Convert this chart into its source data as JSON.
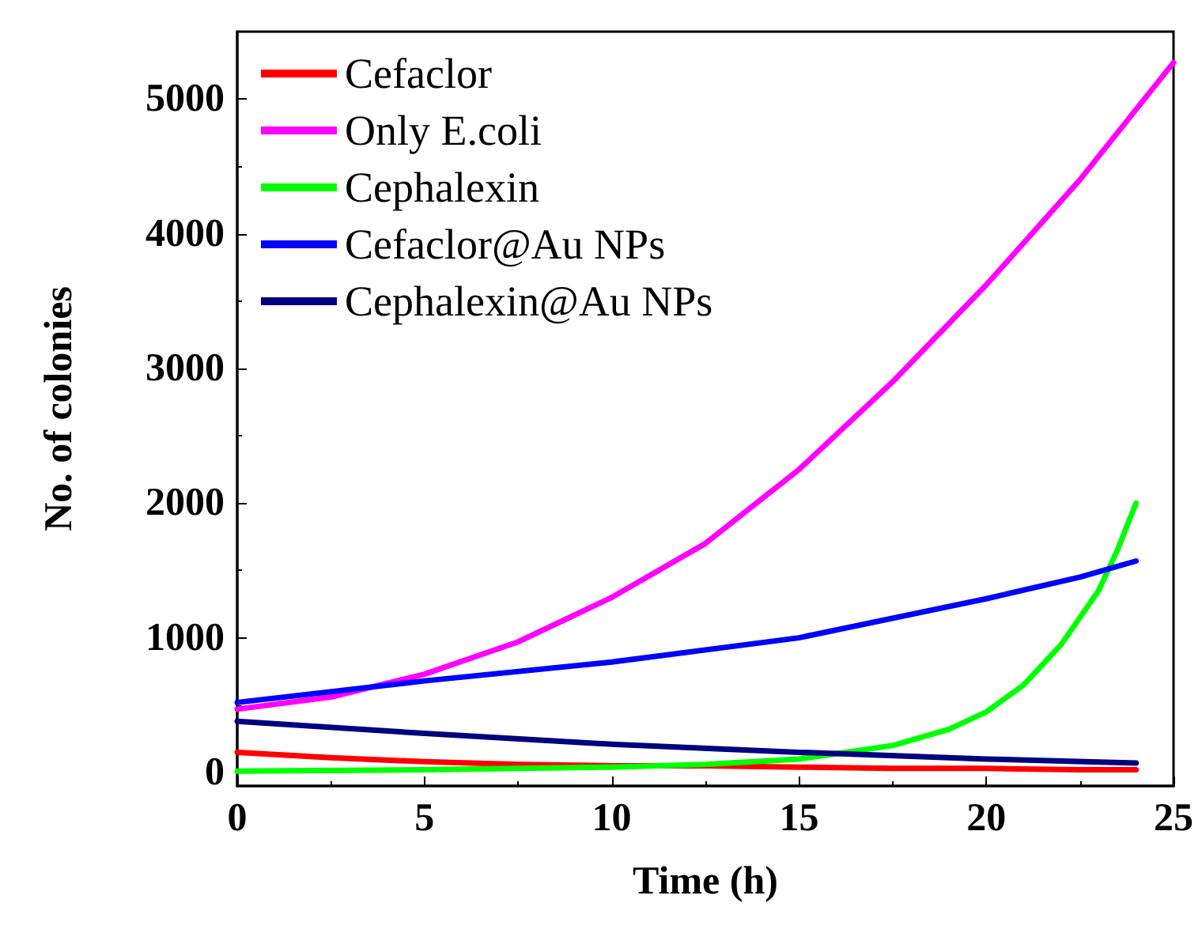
{
  "chart_data": {
    "type": "line",
    "xlabel": "Time (h)",
    "ylabel": "No. of colonies",
    "xlim": [
      0,
      25
    ],
    "xticks": [
      0,
      5,
      10,
      15,
      20,
      25
    ],
    "ylim": [
      -100,
      5500
    ],
    "yticks": [
      0,
      1000,
      2000,
      3000,
      4000,
      5000
    ],
    "grid": false,
    "legend": "top left",
    "marker": "none",
    "line_style": "solid",
    "series": [
      {
        "name": "Cefaclor",
        "color": "#ff0000",
        "x": [
          0,
          2.5,
          5,
          7.5,
          10,
          12.5,
          15,
          17.5,
          20,
          22.5,
          24
        ],
        "values": [
          150,
          110,
          80,
          60,
          50,
          50,
          40,
          30,
          30,
          20,
          20
        ]
      },
      {
        "name": "Only E.coli",
        "color": "#ff00ff",
        "x": [
          0,
          2.5,
          5,
          7.5,
          10,
          12.5,
          15,
          17.5,
          20,
          22.5,
          25
        ],
        "values": [
          470,
          560,
          730,
          970,
          1300,
          1700,
          2250,
          2900,
          3620,
          4400,
          5270
        ]
      },
      {
        "name": "Cephalexin",
        "color": "#00ff00",
        "x": [
          0,
          5,
          10,
          12.5,
          15,
          17.5,
          19,
          20,
          21,
          22,
          23,
          23.5,
          24
        ],
        "values": [
          10,
          20,
          40,
          60,
          100,
          200,
          320,
          450,
          650,
          950,
          1350,
          1650,
          2000
        ]
      },
      {
        "name": "Cefaclor@Au NPs",
        "color": "#0000ff",
        "x": [
          0,
          5,
          10,
          15,
          20,
          22.5,
          24
        ],
        "values": [
          520,
          680,
          820,
          1000,
          1290,
          1450,
          1570
        ]
      },
      {
        "name": "Cephalexin@Au NPs",
        "color": "#000080",
        "x": [
          0,
          5,
          10,
          15,
          20,
          24
        ],
        "values": [
          380,
          290,
          210,
          150,
          100,
          70
        ]
      }
    ]
  }
}
